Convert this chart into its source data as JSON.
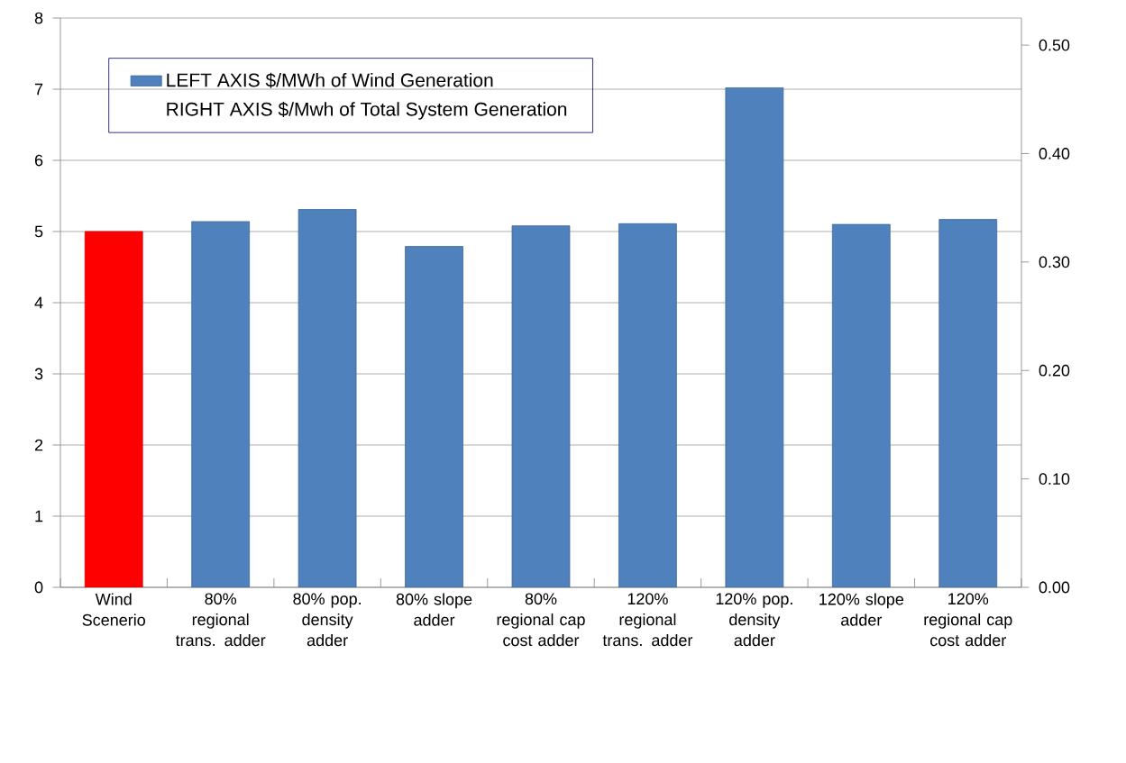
{
  "chart_data": {
    "type": "bar",
    "categories": [
      "Wind Scenerio",
      "80% regional trans. adder",
      "80% pop. density adder",
      "80% slope adder",
      "80% regional cap cost adder",
      "120% regional trans. adder",
      "120% pop. density adder",
      "120% slope adder",
      "120% regional cap cost adder"
    ],
    "series": [
      {
        "name": "LEFT AXIS $/MWh of Wind Generation",
        "color": "#4f81bd",
        "colors": [
          "#ff0000",
          "#4f81bd",
          "#4f81bd",
          "#4f81bd",
          "#4f81bd",
          "#4f81bd",
          "#4f81bd",
          "#4f81bd",
          "#4f81bd"
        ],
        "values": [
          5.0,
          5.14,
          5.31,
          4.79,
          5.08,
          5.11,
          7.02,
          5.1,
          5.17
        ]
      }
    ],
    "annotations": [
      "RIGHT AXIS $/Mwh of Total System Generation"
    ],
    "ylim": [
      0,
      8
    ],
    "yticks": [
      0,
      1,
      2,
      3,
      4,
      5,
      6,
      7,
      8
    ],
    "y2lim": [
      0,
      0.525
    ],
    "y2ticks": [
      {
        "value": 0,
        "label": "0.00"
      },
      {
        "value": 0.1,
        "label": "0.10"
      },
      {
        "value": 0.2,
        "label": "0.20"
      },
      {
        "value": 0.3,
        "label": "0.30"
      },
      {
        "value": 0.4,
        "label": "0.40"
      },
      {
        "value": 0.5,
        "label": "0.50"
      }
    ],
    "grid": "y",
    "legend": "top left"
  }
}
